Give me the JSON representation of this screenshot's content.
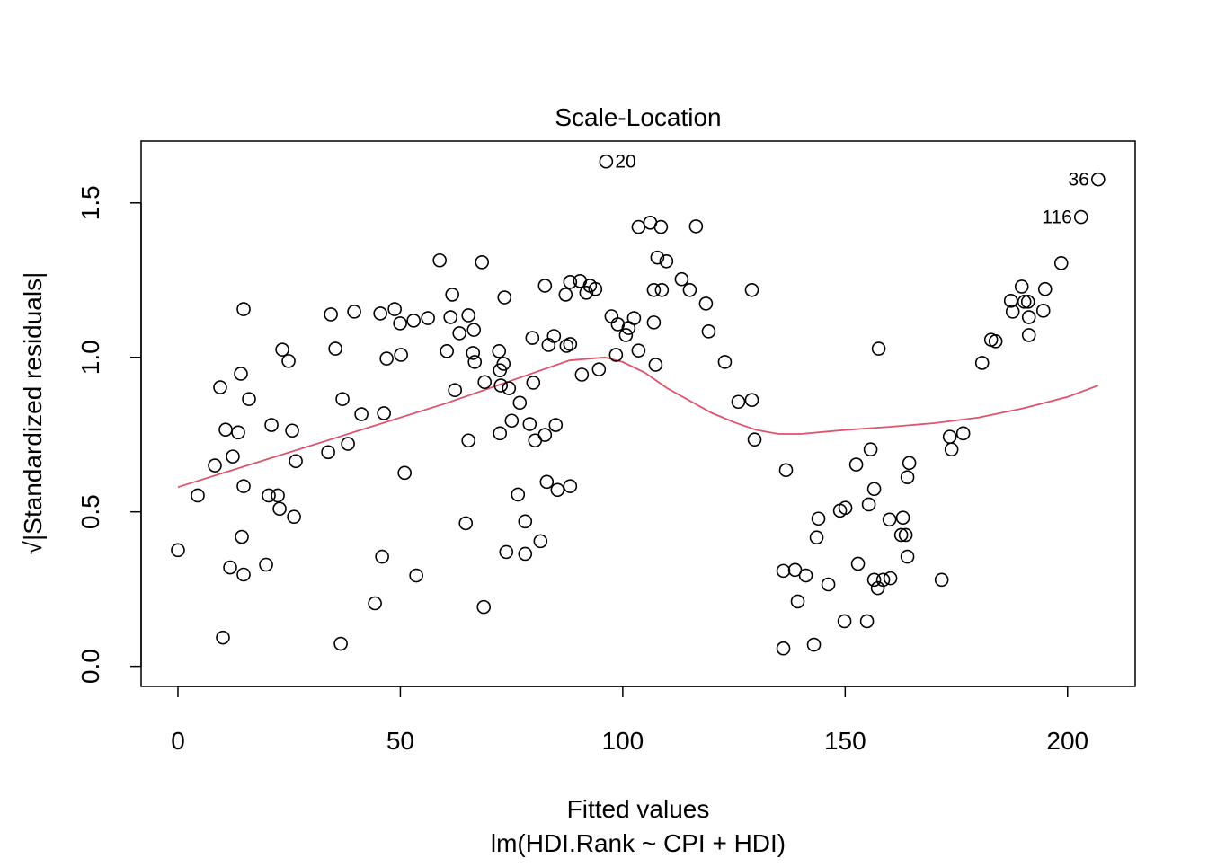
{
  "chart_data": {
    "type": "scatter",
    "title": "Scale-Location",
    "xlabel": "Fitted values",
    "ylabel": "√|Standardized residuals|",
    "subtitle": "lm(HDI.Rank ~ CPI + HDI)",
    "xlim": [
      -8.28,
      215.2
    ],
    "ylim": [
      -0.065,
      1.7
    ],
    "xticks": [
      0,
      50,
      100,
      150,
      200
    ],
    "yticks": [
      0.0,
      0.5,
      1.0,
      1.5
    ],
    "ytick_labels": [
      "0.0",
      "0.5",
      "1.0",
      "1.5"
    ],
    "grid": false,
    "point_color": "#000000",
    "smooth_color": "#DF536B",
    "points": [
      [
        0,
        0.376
      ],
      [
        4.45,
        0.553
      ],
      [
        8.29,
        0.65
      ],
      [
        9.5,
        0.903
      ],
      [
        10.11,
        0.093
      ],
      [
        10.72,
        0.766
      ],
      [
        11.73,
        0.32
      ],
      [
        12.33,
        0.679
      ],
      [
        13.55,
        0.757
      ],
      [
        14.15,
        0.947
      ],
      [
        14.36,
        0.419
      ],
      [
        14.76,
        1.156
      ],
      [
        14.76,
        0.583
      ],
      [
        14.76,
        0.297
      ],
      [
        15.97,
        0.865
      ],
      [
        19.82,
        0.329
      ],
      [
        20.42,
        0.553
      ],
      [
        21.03,
        0.781
      ],
      [
        22.45,
        0.553
      ],
      [
        22.85,
        0.51
      ],
      [
        23.46,
        1.025
      ],
      [
        24.87,
        0.988
      ],
      [
        25.68,
        0.763
      ],
      [
        26.09,
        0.484
      ],
      [
        26.49,
        0.664
      ],
      [
        33.77,
        0.693
      ],
      [
        34.38,
        1.139
      ],
      [
        35.39,
        1.028
      ],
      [
        36.6,
        0.073
      ],
      [
        37.0,
        0.865
      ],
      [
        38.22,
        0.72
      ],
      [
        39.63,
        1.148
      ],
      [
        41.25,
        0.816
      ],
      [
        44.28,
        0.204
      ],
      [
        45.5,
        1.142
      ],
      [
        45.9,
        0.355
      ],
      [
        46.31,
        0.819
      ],
      [
        46.91,
        0.996
      ],
      [
        48.73,
        1.156
      ],
      [
        49.94,
        1.11
      ],
      [
        50.15,
        1.008
      ],
      [
        50.96,
        0.626
      ],
      [
        52.98,
        1.119
      ],
      [
        53.58,
        0.294
      ],
      [
        56.21,
        1.127
      ],
      [
        58.84,
        1.314
      ],
      [
        60.46,
        1.02
      ],
      [
        61.27,
        1.13
      ],
      [
        61.67,
        1.203
      ],
      [
        62.28,
        0.894
      ],
      [
        63.29,
        1.078
      ],
      [
        64.71,
        0.463
      ],
      [
        65.31,
        1.136
      ],
      [
        65.31,
        0.731
      ],
      [
        66.33,
        1.014
      ],
      [
        66.53,
        1.089
      ],
      [
        66.73,
        0.985
      ],
      [
        68.35,
        1.308
      ],
      [
        68.75,
        0.192
      ],
      [
        68.95,
        0.92
      ],
      [
        72.19,
        1.02
      ],
      [
        72.39,
        0.958
      ],
      [
        72.39,
        0.754
      ],
      [
        72.59,
        0.909
      ],
      [
        73.2,
        0.979
      ],
      [
        73.41,
        1.194
      ],
      [
        73.81,
        0.37
      ],
      [
        74.42,
        0.9
      ],
      [
        75.03,
        0.795
      ],
      [
        76.44,
        0.556
      ],
      [
        76.85,
        0.853
      ],
      [
        78.06,
        0.469
      ],
      [
        78.06,
        0.364
      ],
      [
        79.07,
        0.784
      ],
      [
        79.68,
        1.063
      ],
      [
        79.88,
        0.918
      ],
      [
        80.28,
        0.731
      ],
      [
        81.5,
        0.405
      ],
      [
        82.51,
        1.232
      ],
      [
        82.51,
        0.749
      ],
      [
        82.91,
        0.597
      ],
      [
        83.32,
        1.04
      ],
      [
        84.53,
        1.069
      ],
      [
        84.93,
        0.781
      ],
      [
        85.34,
        0.571
      ],
      [
        87.16,
        1.203
      ],
      [
        87.36,
        1.037
      ],
      [
        88.17,
        0.583
      ],
      [
        88.17,
        1.043
      ],
      [
        88.17,
        1.244
      ],
      [
        90.39,
        1.247
      ],
      [
        90.8,
        0.944
      ],
      [
        91.81,
        1.209
      ],
      [
        92.62,
        1.232
      ],
      [
        93.83,
        1.221
      ],
      [
        94.64,
        0.961
      ],
      [
        96.26,
        1.634
      ],
      [
        97.47,
        1.133
      ],
      [
        98.48,
        1.008
      ],
      [
        98.89,
        1.107
      ],
      [
        100.71,
        1.072
      ],
      [
        101.31,
        1.095
      ],
      [
        102.53,
        1.127
      ],
      [
        103.54,
        1.022
      ],
      [
        103.54,
        1.422
      ],
      [
        106.17,
        1.436
      ],
      [
        106.98,
        1.113
      ],
      [
        106.98,
        1.218
      ],
      [
        107.38,
        0.976
      ],
      [
        107.78,
        1.323
      ],
      [
        108.59,
        1.422
      ],
      [
        108.79,
        1.218
      ],
      [
        109.8,
        1.311
      ],
      [
        113.24,
        1.253
      ],
      [
        115.06,
        1.218
      ],
      [
        116.47,
        1.424
      ],
      [
        118.7,
        1.174
      ],
      [
        119.31,
        1.084
      ],
      [
        122.95,
        0.985
      ],
      [
        125.98,
        0.856
      ],
      [
        129.02,
        1.218
      ],
      [
        129.02,
        0.862
      ],
      [
        129.63,
        0.734
      ],
      [
        136.1,
        0.058
      ],
      [
        136.1,
        0.309
      ],
      [
        136.7,
        0.635
      ],
      [
        138.73,
        0.312
      ],
      [
        139.33,
        0.21
      ],
      [
        141.15,
        0.294
      ],
      [
        142.97,
        0.07
      ],
      [
        143.98,
        0.478
      ],
      [
        143.58,
        0.417
      ],
      [
        146.21,
        0.265
      ],
      [
        148.84,
        0.504
      ],
      [
        149.85,
        0.146
      ],
      [
        150.05,
        0.513
      ],
      [
        152.48,
        0.653
      ],
      [
        152.88,
        0.332
      ],
      [
        154.9,
        0.146
      ],
      [
        155.31,
        0.524
      ],
      [
        155.71,
        0.702
      ],
      [
        156.52,
        0.574
      ],
      [
        156.52,
        0.28
      ],
      [
        157.33,
        0.253
      ],
      [
        157.53,
        1.028
      ],
      [
        158.54,
        0.28
      ],
      [
        160.16,
        0.285
      ],
      [
        159.96,
        0.475
      ],
      [
        162.99,
        0.481
      ],
      [
        162.59,
        0.425
      ],
      [
        163.6,
        0.425
      ],
      [
        164.0,
        0.612
      ],
      [
        164.41,
        0.658
      ],
      [
        164.0,
        0.355
      ],
      [
        171.69,
        0.28
      ],
      [
        173.51,
        0.743
      ],
      [
        173.91,
        0.702
      ],
      [
        176.54,
        0.754
      ],
      [
        180.79,
        0.982
      ],
      [
        182.81,
        1.057
      ],
      [
        183.82,
        1.052
      ],
      [
        187.26,
        1.183
      ],
      [
        187.66,
        1.148
      ],
      [
        189.69,
        1.229
      ],
      [
        190.29,
        1.18
      ],
      [
        191.1,
        1.18
      ],
      [
        191.3,
        1.13
      ],
      [
        191.3,
        1.072
      ],
      [
        194.54,
        1.151
      ],
      [
        194.94,
        1.221
      ],
      [
        198.58,
        1.305
      ],
      [
        203.03,
        1.454
      ],
      [
        206.88,
        1.576
      ]
    ],
    "labeled_points": [
      {
        "label": "20",
        "x": 96.26,
        "y": 1.634,
        "side": "right"
      },
      {
        "label": "116",
        "x": 203.03,
        "y": 1.454,
        "side": "left"
      },
      {
        "label": "36",
        "x": 206.88,
        "y": 1.576,
        "side": "left"
      }
    ],
    "smooth": [
      [
        0,
        0.58
      ],
      [
        20,
        0.67
      ],
      [
        40,
        0.76
      ],
      [
        60,
        0.85
      ],
      [
        80,
        0.95
      ],
      [
        88,
        0.99
      ],
      [
        92,
        0.995
      ],
      [
        96,
        1.0
      ],
      [
        100,
        0.985
      ],
      [
        105,
        0.95
      ],
      [
        110,
        0.9
      ],
      [
        115,
        0.86
      ],
      [
        120,
        0.82
      ],
      [
        125,
        0.79
      ],
      [
        130,
        0.765
      ],
      [
        135,
        0.752
      ],
      [
        140,
        0.752
      ],
      [
        150,
        0.765
      ],
      [
        160,
        0.775
      ],
      [
        170,
        0.787
      ],
      [
        180,
        0.805
      ],
      [
        190,
        0.835
      ],
      [
        200,
        0.872
      ],
      [
        206.88,
        0.909
      ]
    ]
  }
}
